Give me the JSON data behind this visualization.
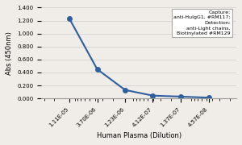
{
  "x_labels": [
    "1.11E-05",
    "3.70E-06",
    "1.23E-06",
    "4.12E-07",
    "1.37E-07",
    "4.57E-08"
  ],
  "x_values": [
    1.11e-05,
    3.7e-06,
    1.23e-06,
    4.12e-07,
    1.37e-07,
    4.57e-08
  ],
  "y_values": [
    1.23,
    0.45,
    0.13,
    0.043,
    0.028,
    0.012
  ],
  "ylabel": "Abs (450nm)",
  "xlabel": "Human Plasma (Dilution)",
  "ylim": [
    0.0,
    1.4
  ],
  "yticks": [
    0.0,
    0.2,
    0.4,
    0.6,
    0.8,
    1.0,
    1.2,
    1.4
  ],
  "line_color": "#2E5F9E",
  "marker": "o",
  "marker_color": "#2E5F9E",
  "marker_size": 4,
  "line_width": 1.5,
  "legend_text": "Capture:\nanti-HuIgG1, #RM117;\nDetection:\nanti-Light chains,\nBiotinylated #RM129",
  "background_color": "#f0ede8",
  "plot_bg_color": "#f0ede8",
  "grid_color": "#cccccc",
  "title": ""
}
